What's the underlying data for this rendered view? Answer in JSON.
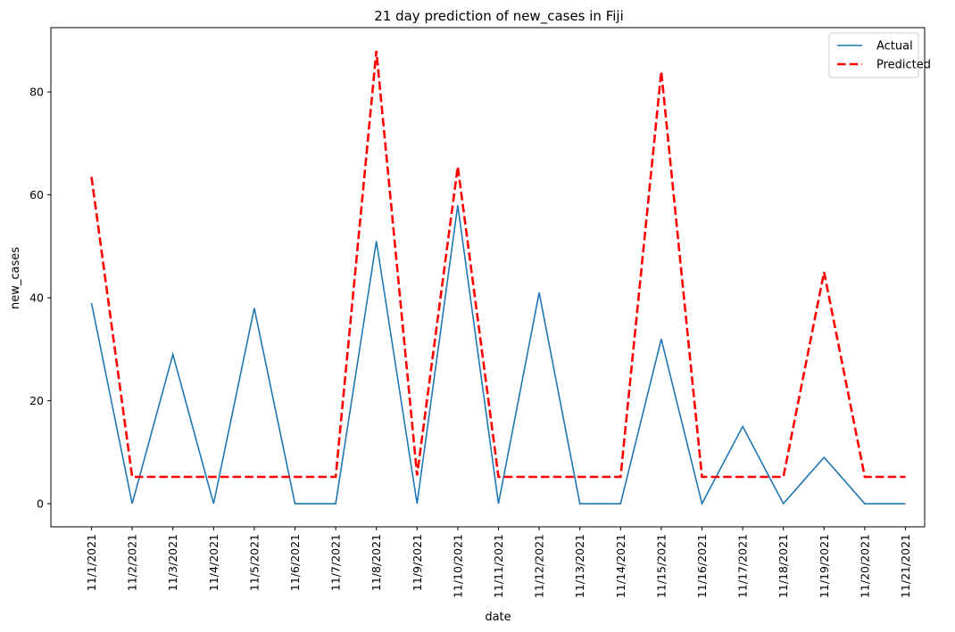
{
  "chart_data": {
    "type": "line",
    "title": "21 day prediction of new_cases in Fiji",
    "xlabel": "date",
    "ylabel": "new_cases",
    "categories": [
      "11/1/2021",
      "11/2/2021",
      "11/3/2021",
      "11/4/2021",
      "11/5/2021",
      "11/6/2021",
      "11/7/2021",
      "11/8/2021",
      "11/9/2021",
      "11/10/2021",
      "11/11/2021",
      "11/12/2021",
      "11/13/2021",
      "11/14/2021",
      "11/15/2021",
      "11/16/2021",
      "11/17/2021",
      "11/18/2021",
      "11/19/2021",
      "11/20/2021",
      "11/21/2021"
    ],
    "ylim": [
      -4.5,
      92.5
    ],
    "yticks": [
      0,
      20,
      40,
      60,
      80
    ],
    "grid": false,
    "legend_position": "top-right",
    "series": [
      {
        "name": "Actual",
        "color": "#1f77b4",
        "style": "solid",
        "values": [
          39,
          0,
          29,
          0,
          38,
          0,
          0,
          51,
          0,
          58,
          0,
          41,
          0,
          0,
          32,
          0,
          15,
          0,
          9,
          0,
          0
        ]
      },
      {
        "name": "Predicted",
        "color": "#ff0000",
        "style": "dashed",
        "values": [
          63.5,
          5.2,
          5.2,
          5.2,
          5.2,
          5.2,
          5.2,
          88,
          5.5,
          65.5,
          5.2,
          5.2,
          5.2,
          5.2,
          84,
          5.2,
          5.2,
          5.2,
          45,
          5.2,
          5.2
        ]
      }
    ]
  }
}
